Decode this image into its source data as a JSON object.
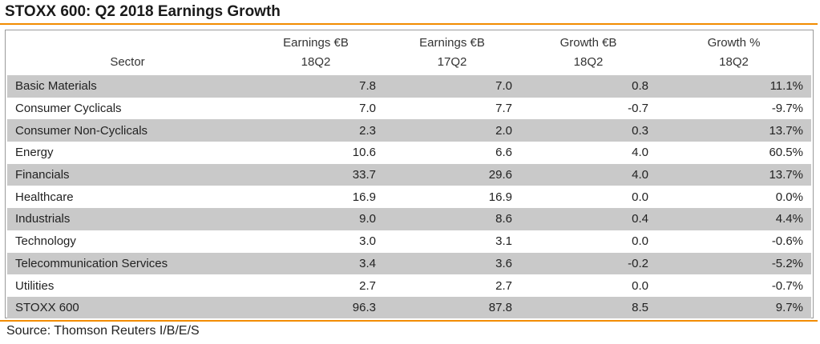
{
  "title": "STOXX 600: Q2 2018 Earnings Growth",
  "source": "Source: Thomson Reuters I/B/E/S",
  "accent_color": "#f28c00",
  "shade_color": "#c9c9c9",
  "chart_data": {
    "type": "table",
    "title": "STOXX 600: Q2 2018 Earnings Growth",
    "columns": [
      {
        "line1": "",
        "line2": "Sector"
      },
      {
        "line1": "Earnings €B",
        "line2": "18Q2"
      },
      {
        "line1": "Earnings €B",
        "line2": "17Q2"
      },
      {
        "line1": "Growth €B",
        "line2": "18Q2"
      },
      {
        "line1": "Growth %",
        "line2": "18Q2"
      }
    ],
    "rows": [
      {
        "sector": "Basic Materials",
        "earn18": "7.8",
        "earn17": "7.0",
        "growth": "0.8",
        "pct": "11.1%"
      },
      {
        "sector": "Consumer Cyclicals",
        "earn18": "7.0",
        "earn17": "7.7",
        "growth": "-0.7",
        "pct": "-9.7%"
      },
      {
        "sector": "Consumer Non-Cyclicals",
        "earn18": "2.3",
        "earn17": "2.0",
        "growth": "0.3",
        "pct": "13.7%"
      },
      {
        "sector": "Energy",
        "earn18": "10.6",
        "earn17": "6.6",
        "growth": "4.0",
        "pct": "60.5%"
      },
      {
        "sector": "Financials",
        "earn18": "33.7",
        "earn17": "29.6",
        "growth": "4.0",
        "pct": "13.7%"
      },
      {
        "sector": "Healthcare",
        "earn18": "16.9",
        "earn17": "16.9",
        "growth": "0.0",
        "pct": "0.0%"
      },
      {
        "sector": "Industrials",
        "earn18": "9.0",
        "earn17": "8.6",
        "growth": "0.4",
        "pct": "4.4%"
      },
      {
        "sector": "Technology",
        "earn18": "3.0",
        "earn17": "3.1",
        "growth": "0.0",
        "pct": "-0.6%"
      },
      {
        "sector": "Telecommunication Services",
        "earn18": "3.4",
        "earn17": "3.6",
        "growth": "-0.2",
        "pct": "-5.2%"
      },
      {
        "sector": "Utilities",
        "earn18": "2.7",
        "earn17": "2.7",
        "growth": "0.0",
        "pct": "-0.7%"
      }
    ],
    "total": {
      "sector": "STOXX 600",
      "earn18": "96.3",
      "earn17": "87.8",
      "growth": "8.5",
      "pct": "9.7%"
    }
  }
}
